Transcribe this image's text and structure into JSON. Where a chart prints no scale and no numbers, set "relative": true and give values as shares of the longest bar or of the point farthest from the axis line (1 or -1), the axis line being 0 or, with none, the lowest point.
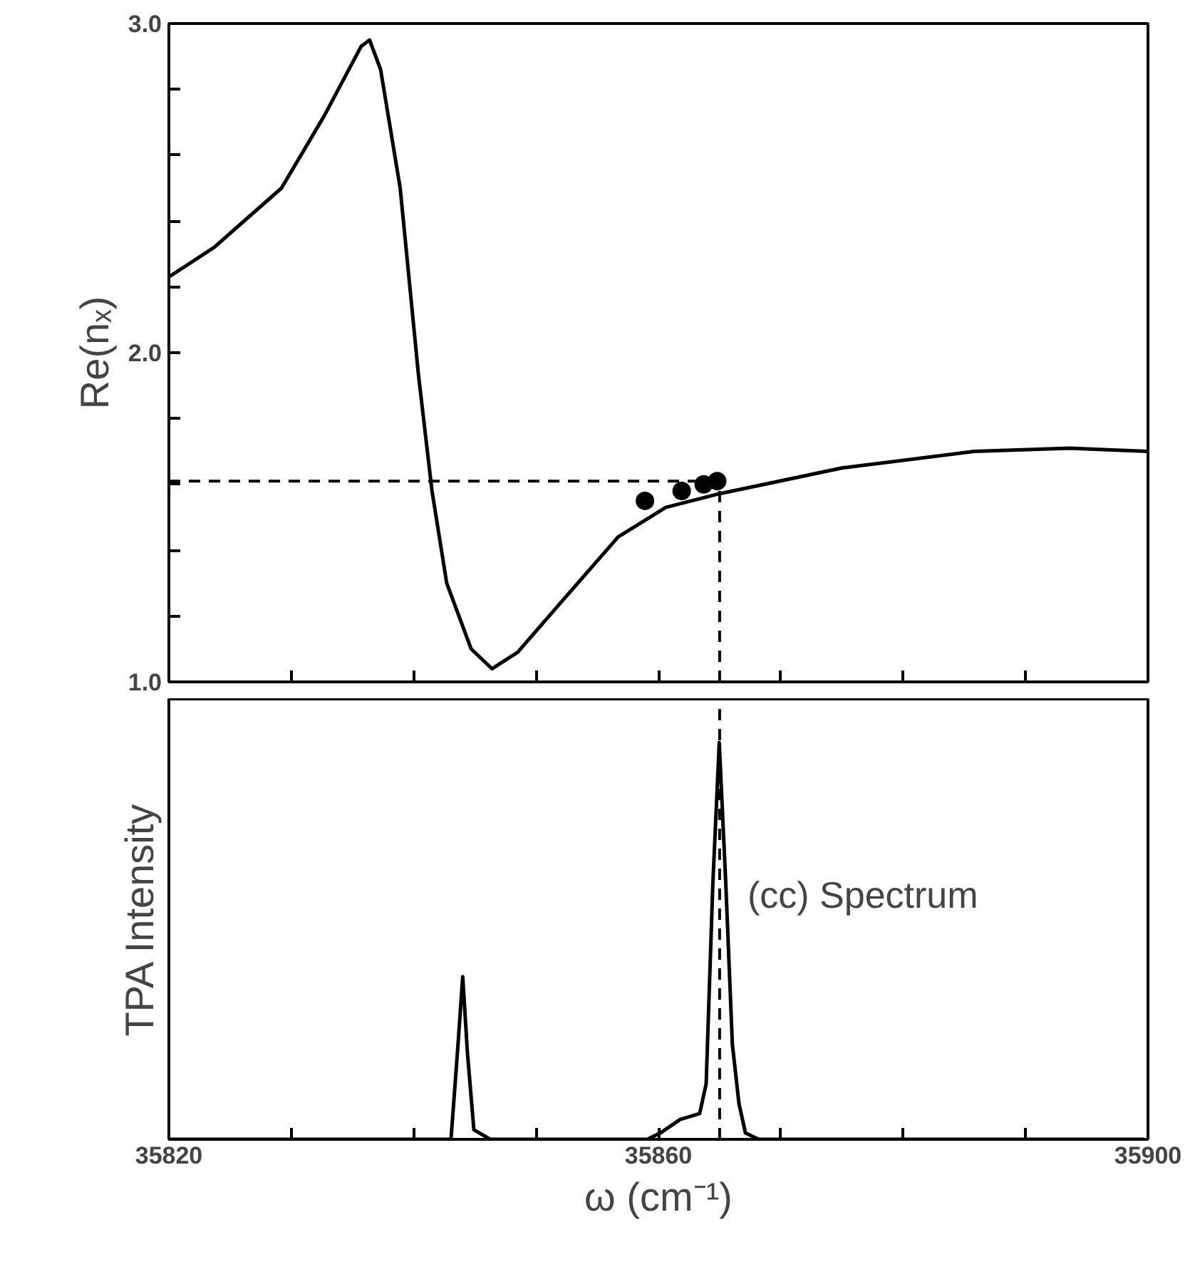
{
  "chart_data": [
    {
      "type": "line",
      "ylabel": "Re(nₓ)",
      "xlim": [
        35820,
        35900
      ],
      "ylim": [
        1.0,
        3.0
      ],
      "xticks": [
        {
          "value": 35820,
          "label": null
        },
        {
          "value": 35830,
          "label": null
        },
        {
          "value": 35840,
          "label": null
        },
        {
          "value": 35850,
          "label": null
        },
        {
          "value": 35860,
          "label": null
        },
        {
          "value": 35870,
          "label": null
        },
        {
          "value": 35880,
          "label": null
        },
        {
          "value": 35890,
          "label": null
        },
        {
          "value": 35900,
          "label": null
        }
      ],
      "yticks": [
        {
          "value": 1.0,
          "label": "1.0"
        },
        {
          "value": 1.2,
          "label": null
        },
        {
          "value": 1.4,
          "label": null
        },
        {
          "value": 1.6,
          "label": null
        },
        {
          "value": 1.8,
          "label": null
        },
        {
          "value": 2.0,
          "label": "2.0"
        },
        {
          "value": 2.2,
          "label": null
        },
        {
          "value": 2.4,
          "label": null
        },
        {
          "value": 2.6,
          "label": null
        },
        {
          "value": 2.8,
          "label": null
        },
        {
          "value": 3.0,
          "label": "3.0"
        }
      ],
      "tick_labels": "y",
      "grid": false,
      "series": [
        {
          "color": "#000000",
          "x": [
            35820,
            35823.7,
            35829.2,
            35832.7,
            35835.7,
            35836.4,
            35837.3,
            35838.9,
            35840.4,
            35841.5,
            35842.7,
            35844.7,
            35846.4,
            35848.5,
            35852.0,
            35856.7,
            35860.6,
            35864.8,
            35875.0,
            35885.8,
            35893.6,
            35900
          ],
          "values": [
            2.23,
            2.32,
            2.5,
            2.72,
            2.93,
            2.95,
            2.86,
            2.5,
            1.93,
            1.58,
            1.3,
            1.1,
            1.04,
            1.09,
            1.24,
            1.44,
            1.53,
            1.57,
            1.65,
            1.7,
            1.71,
            1.7
          ]
        },
        {
          "type": "scatter",
          "color": "#000000",
          "marker": "circle",
          "x": [
            35858.9,
            35861.9,
            35863.7,
            35864.3,
            35864.8
          ],
          "values": [
            1.55,
            1.58,
            1.6,
            null,
            1.61
          ]
        }
      ],
      "ref_lines": [
        {
          "axis": "y",
          "value": 1.61,
          "line_style": "dashed",
          "color": "#000000"
        },
        {
          "axis": "x",
          "value": 35865,
          "line_style": "dashed",
          "color": "#000000"
        }
      ]
    },
    {
      "type": "line",
      "relative": true,
      "xlabel": "ω (cm⁻¹)",
      "ylabel": "TPA Intensity",
      "xlim": [
        35820,
        35900
      ],
      "xticks": [
        35820,
        {
          "value": 35830,
          "label": null
        },
        {
          "value": 35840,
          "label": null
        },
        {
          "value": 35850,
          "label": null
        },
        35860,
        {
          "value": 35870,
          "label": null
        },
        {
          "value": 35880,
          "label": null
        },
        {
          "value": 35890,
          "label": null
        },
        35900
      ],
      "tick_labels": "x",
      "grid": false,
      "series": [
        {
          "color": "#000000",
          "x": [
            35820.05,
            35837.7,
            35843.05,
            35843.58,
            35844.01,
            35844.39,
            35844.92,
            35846.26,
            35855.34,
            35859.09,
            35860.16,
            35861.77,
            35863.37,
            35863.9,
            35864.44,
            35864.97,
            35865.51,
            35866.04,
            35866.58,
            35867.11,
            35868.19,
            35899.7
          ],
          "values": [
            0,
            0,
            0,
            0.22,
            0.41,
            0.22,
            0.024,
            0,
            0,
            0,
            0.016,
            0.05,
            0.065,
            0.14,
            0.64,
            1,
            0.64,
            0.24,
            0.09,
            0.016,
            0,
            0
          ]
        }
      ],
      "ref_lines": [
        {
          "axis": "x",
          "value": 35865,
          "line_style": "dashed",
          "color": "#000000"
        }
      ],
      "annotations": [
        "(cc)  Spectrum"
      ]
    }
  ]
}
